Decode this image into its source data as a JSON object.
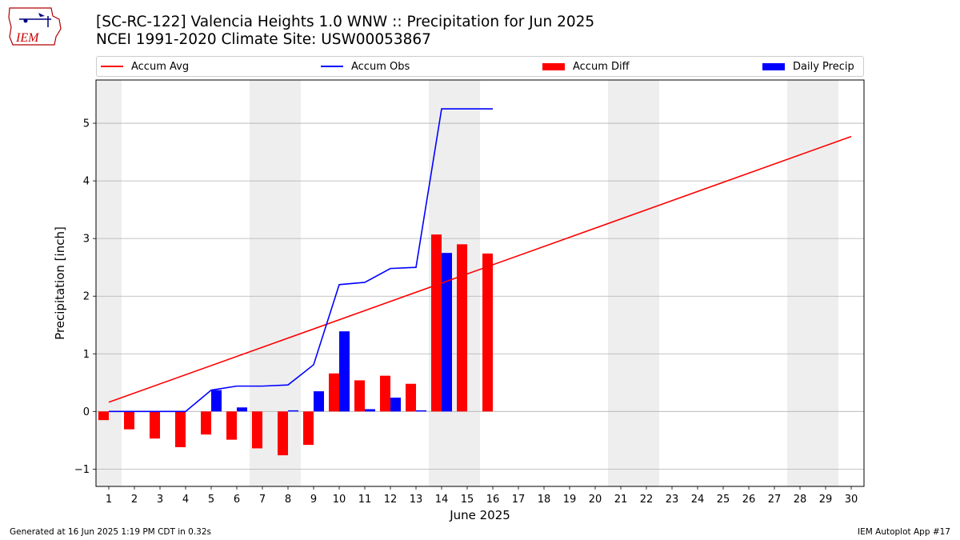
{
  "logo": {
    "text": "IEM"
  },
  "title_line1": "[SC-RC-122] Valencia Heights 1.0 WNW :: Precipitation for Jun 2025",
  "title_line2": "NCEI 1991-2020 Climate Site: USW00053867",
  "legend": {
    "accum_avg": "Accum Avg",
    "accum_obs": "Accum Obs",
    "accum_diff": "Accum Diff",
    "daily_precip": "Daily Precip"
  },
  "colors": {
    "accum_avg": "#ff0000",
    "accum_obs": "#0000ff",
    "accum_diff": "#ff0000",
    "daily_precip": "#0000ff",
    "weekend_shade": "#eeeeee",
    "grid": "#b0b0b0"
  },
  "footer": {
    "left": "Generated at 16 Jun 2025 1:19 PM CDT in 0.32s",
    "right": "IEM Autoplot App #17"
  },
  "chart_data": {
    "type": "bar",
    "xlabel": "June 2025",
    "ylabel": "Precipitation [inch]",
    "xlim": [
      0.5,
      30.5
    ],
    "ylim": [
      -1.3,
      5.75
    ],
    "x_ticks": [
      1,
      2,
      3,
      4,
      5,
      6,
      7,
      8,
      9,
      10,
      11,
      12,
      13,
      14,
      15,
      16,
      17,
      18,
      19,
      20,
      21,
      22,
      23,
      24,
      25,
      26,
      27,
      28,
      29,
      30
    ],
    "y_ticks": [
      -1,
      0,
      1,
      2,
      3,
      4,
      5
    ],
    "grid": "horizontal",
    "legend_position": "top",
    "weekend_days": [
      1,
      7,
      8,
      14,
      15,
      21,
      22,
      28,
      29
    ],
    "series": [
      {
        "name": "Accum Avg",
        "kind": "line",
        "x": [
          1,
          30
        ],
        "values": [
          0.16,
          4.77
        ]
      },
      {
        "name": "Accum Obs",
        "kind": "line",
        "x": [
          1,
          2,
          3,
          4,
          5,
          6,
          7,
          8,
          9,
          10,
          11,
          12,
          13,
          14,
          15,
          16
        ],
        "values": [
          0.0,
          0.0,
          0.0,
          0.0,
          0.37,
          0.44,
          0.44,
          0.46,
          0.81,
          2.2,
          2.24,
          2.48,
          2.5,
          5.25,
          5.25,
          5.25
        ]
      },
      {
        "name": "Accum Diff",
        "kind": "bar",
        "x": [
          1,
          2,
          3,
          4,
          5,
          6,
          7,
          8,
          9,
          10,
          11,
          12,
          13,
          14,
          15,
          16
        ],
        "values": [
          -0.15,
          -0.31,
          -0.47,
          -0.62,
          -0.4,
          -0.49,
          -0.64,
          -0.76,
          -0.58,
          0.66,
          0.54,
          0.62,
          0.48,
          3.07,
          2.9,
          2.74
        ]
      },
      {
        "name": "Daily Precip",
        "kind": "bar",
        "x": [
          1,
          2,
          3,
          4,
          5,
          6,
          7,
          8,
          9,
          10,
          11,
          12,
          13,
          14,
          15,
          16
        ],
        "values": [
          0.0,
          0.0,
          0.0,
          0.0,
          0.37,
          0.07,
          0.0,
          0.02,
          0.35,
          1.39,
          0.04,
          0.24,
          0.02,
          2.75,
          0.0,
          0.0
        ]
      }
    ]
  }
}
